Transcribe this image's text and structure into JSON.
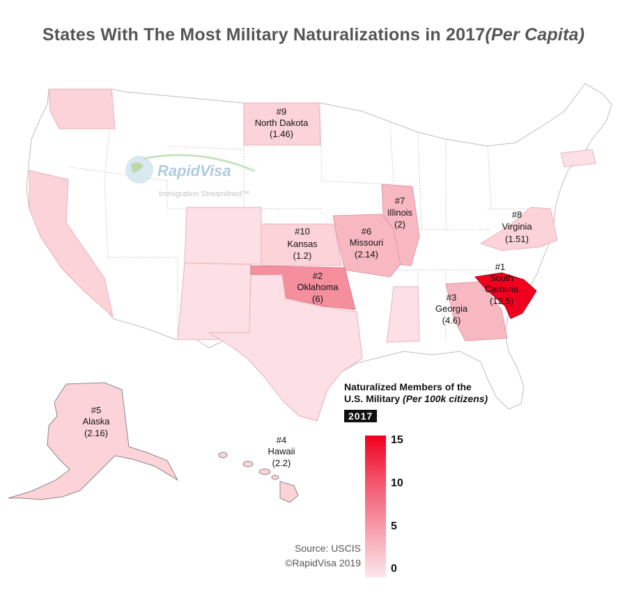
{
  "title": {
    "main": "States With The Most Military Naturalizations in 2017",
    "italic": "(Per Capita)"
  },
  "logo": {
    "name": "RapidVisa",
    "tagline": "Immigration Streamlined™"
  },
  "legend": {
    "title_line1": "Naturalized Members of the",
    "title_line2": "U.S. Military ",
    "title_line2_italic": "(Per 100k citizens)",
    "year": "2017",
    "ticks": [
      "15",
      "10",
      "5",
      "0"
    ],
    "scale_min": 0,
    "scale_max": 15,
    "colors": {
      "high": "#f0001e",
      "mid": "#f45a71",
      "low": "#fde7ec"
    }
  },
  "source": {
    "line1": "Source: USCIS",
    "line2": "©RapidVisa 2019"
  },
  "states": {
    "south_carolina": {
      "rank": "#1",
      "name1": "South",
      "name2": "Carolina",
      "value": "(12.5)"
    },
    "oklahoma": {
      "rank": "#2",
      "name": "Oklahoma",
      "value": "(6)"
    },
    "georgia": {
      "rank": "#3",
      "name": "Georgia",
      "value": "(4.6)"
    },
    "hawaii": {
      "rank": "#4",
      "name": "Hawaii",
      "value": "(2.2)"
    },
    "alaska": {
      "rank": "#5",
      "name": "Alaska",
      "value": "(2.16)"
    },
    "missouri": {
      "rank": "#6",
      "name": "Missouri",
      "value": "(2.14)"
    },
    "illinois": {
      "rank": "#7",
      "name": "Illinois",
      "value": "(2)"
    },
    "virginia": {
      "rank": "#8",
      "name": "Virginia",
      "value": "(1.51)"
    },
    "north_dakota": {
      "rank": "#9",
      "name": "North Dakota",
      "value": "(1.46)"
    },
    "kansas": {
      "rank": "#10",
      "name": "Kansas",
      "value": "(1.2)"
    }
  }
}
